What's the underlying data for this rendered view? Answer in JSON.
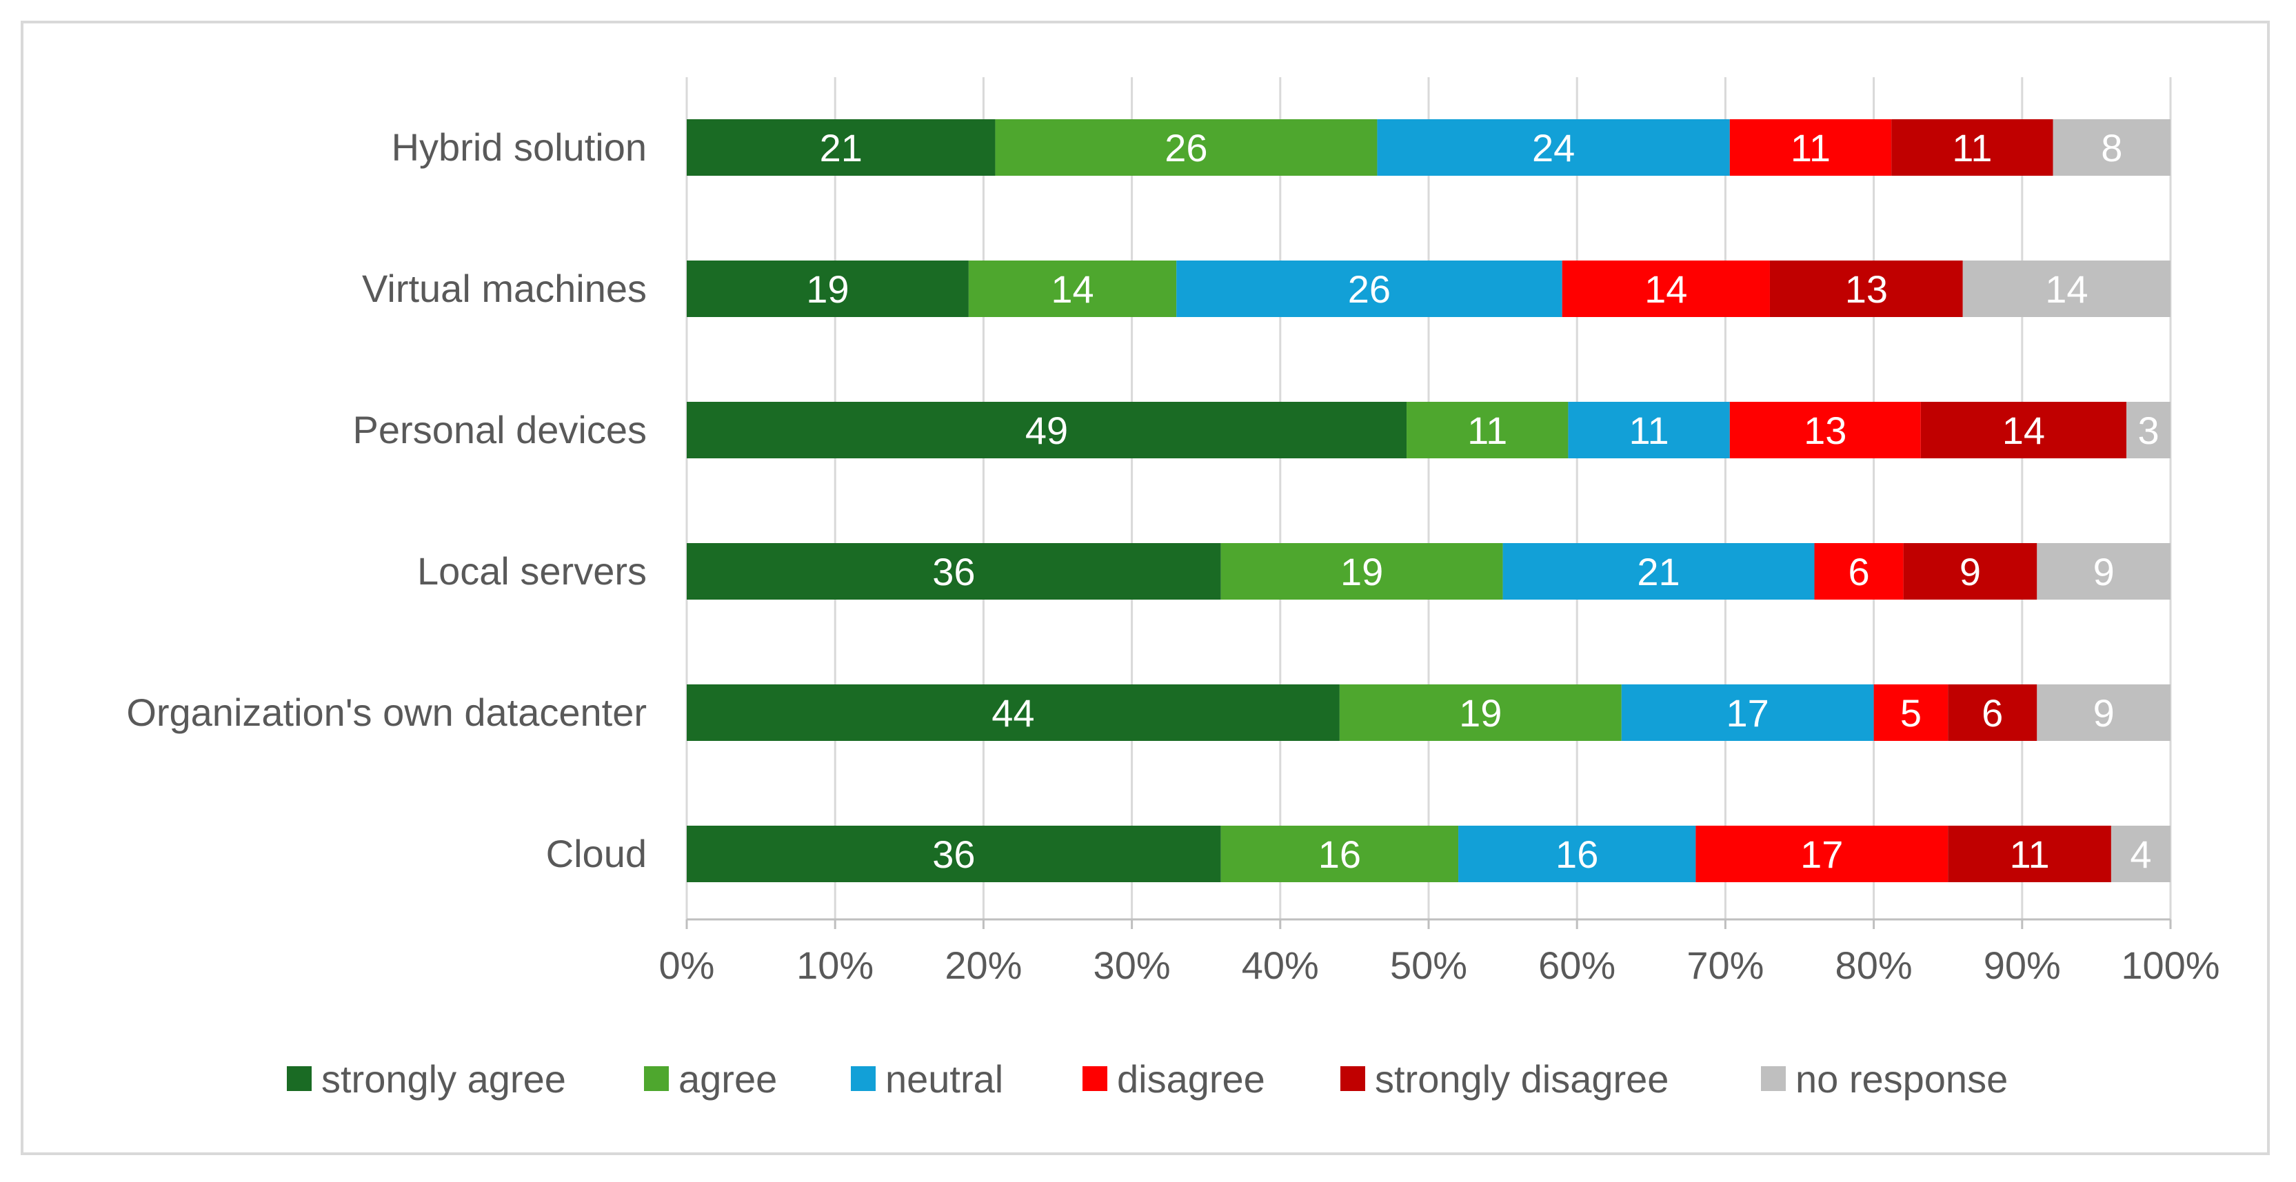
{
  "chart_data": {
    "type": "bar",
    "orientation": "horizontal",
    "stacked": "percent",
    "title": "",
    "xlabel": "",
    "ylabel": "",
    "xlim": [
      0,
      100
    ],
    "grid": true,
    "legend_position": "bottom",
    "categories": [
      "Hybrid solution",
      "Virtual machines",
      "Personal devices",
      "Local servers",
      "Organization's own datacenter",
      "Cloud"
    ],
    "x_ticks": [
      "0%",
      "10%",
      "20%",
      "30%",
      "40%",
      "50%",
      "60%",
      "70%",
      "80%",
      "90%",
      "100%"
    ],
    "series": [
      {
        "name": "strongly agree",
        "color": "#1a6b24",
        "values": [
          21,
          19,
          49,
          36,
          44,
          36
        ]
      },
      {
        "name": "agree",
        "color": "#4ea72e",
        "values": [
          26,
          14,
          11,
          19,
          19,
          16
        ]
      },
      {
        "name": "neutral",
        "color": "#12a0d7",
        "values": [
          24,
          26,
          11,
          21,
          17,
          16
        ]
      },
      {
        "name": "disagree",
        "color": "#ff0000",
        "values": [
          11,
          14,
          13,
          6,
          5,
          17
        ]
      },
      {
        "name": "strongly disagree",
        "color": "#c00000",
        "values": [
          11,
          13,
          14,
          9,
          6,
          11
        ]
      },
      {
        "name": "no response",
        "color": "#bfbfbf",
        "values": [
          8,
          14,
          3,
          9,
          9,
          4
        ]
      }
    ]
  }
}
